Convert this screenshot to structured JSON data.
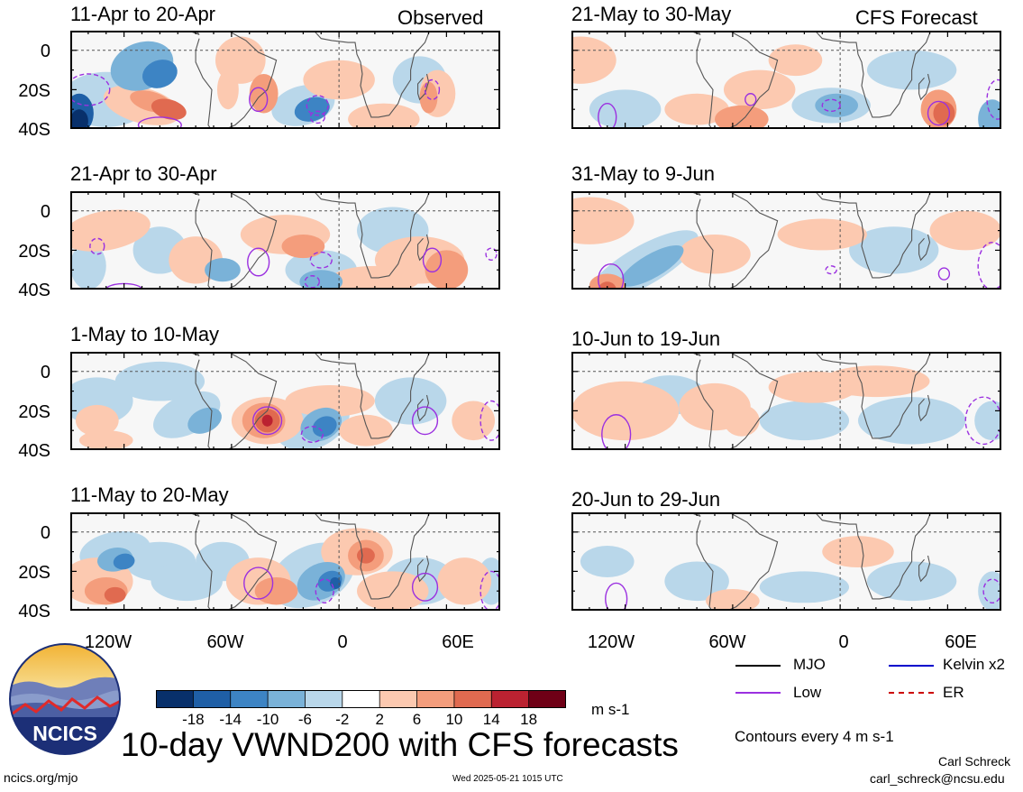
{
  "header": {
    "left_tag": "Observed",
    "right_tag": "CFS Forecast"
  },
  "panels": {
    "observed": [
      {
        "period": "11-Apr to 20-Apr"
      },
      {
        "period": "21-Apr to 30-Apr"
      },
      {
        "period": "1-May to 10-May"
      },
      {
        "period": "11-May to 20-May"
      }
    ],
    "forecast": [
      {
        "period": "21-May to 30-May"
      },
      {
        "period": "31-May to 9-Jun"
      },
      {
        "period": "10-Jun to 19-Jun"
      },
      {
        "period": "20-Jun to 29-Jun"
      }
    ]
  },
  "axes": {
    "y_ticks": [
      "0",
      "20S",
      "40S"
    ],
    "x_ticks": [
      "120W",
      "60W",
      "0",
      "60E"
    ]
  },
  "colorbar": {
    "colors": [
      "#08306b",
      "#1f5fa6",
      "#3d84c4",
      "#7ab2d8",
      "#b9d7ea",
      "#ffffff",
      "#fcc9b0",
      "#f49d7c",
      "#e06a50",
      "#bb2231",
      "#6f0016"
    ],
    "ticks": [
      "-18",
      "-14",
      "-10",
      "-6",
      "-2",
      "2",
      "6",
      "10",
      "14",
      "18"
    ],
    "units": "m s-1"
  },
  "legend": {
    "items": [
      {
        "label": "MJO",
        "color": "#000000",
        "style": "solid"
      },
      {
        "label": "Kelvin x2",
        "color": "#0000cc",
        "style": "solid"
      },
      {
        "label": "Low",
        "color": "#9b30e0",
        "style": "solid"
      },
      {
        "label": "ER",
        "color": "#cc0000",
        "style": "dashed"
      }
    ],
    "contour_note": "Contours every 4 m s-1"
  },
  "logo": {
    "text": "NCICS"
  },
  "footer": {
    "title": "10-day VWND200 with CFS forecasts",
    "url": "ncics.org/mjo",
    "timestamp": "Wed 2025-05-21 1015 UTC",
    "author": "Carl Schreck",
    "email": "carl_schreck@ncsu.edu"
  },
  "chart_data": {
    "type": "heatmap",
    "variable": "VWND200",
    "units": "m s-1",
    "color_levels": [
      -18,
      -14,
      -10,
      -6,
      -2,
      2,
      6,
      10,
      14,
      18
    ],
    "lon_range": [
      -150,
      90
    ],
    "lat_range": [
      -40,
      10
    ],
    "x_ticks": [
      "120W",
      "60W",
      "0",
      "60E"
    ],
    "y_ticks": [
      "0",
      "20S",
      "40S"
    ],
    "columns": [
      "Observed",
      "CFS Forecast"
    ],
    "periods_observed": [
      "11-Apr to 20-Apr",
      "21-Apr to 30-Apr",
      "1-May to 10-May",
      "11-May to 20-May"
    ],
    "periods_forecast": [
      "21-May to 30-May",
      "31-May to 9-Jun",
      "10-Jun to 19-Jun",
      "20-Jun to 29-Jun"
    ],
    "contour_interval": 4
  }
}
